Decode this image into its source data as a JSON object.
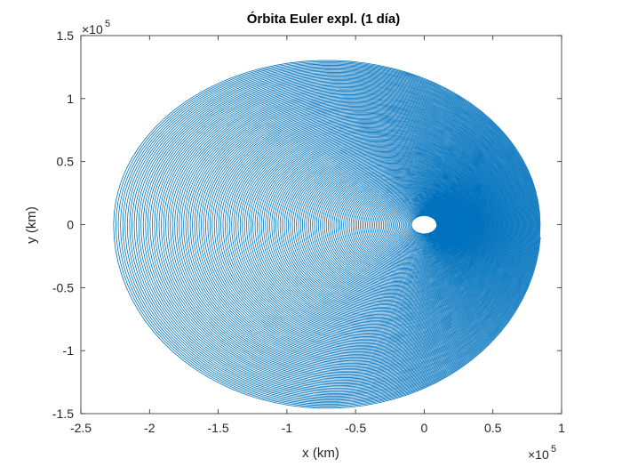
{
  "chart_data": {
    "type": "line",
    "title": "Órbita Euler expl. (1 día)",
    "xlabel": "x (km)",
    "ylabel": "y (km)",
    "xlim": [
      -2.5,
      1
    ],
    "ylim": [
      -1.5,
      1.5
    ],
    "xticks": [
      -2.5,
      -2,
      -1.5,
      -1,
      -0.5,
      0,
      0.5,
      1
    ],
    "yticks": [
      -1.5,
      -1,
      -0.5,
      0,
      0.5,
      1,
      1.5
    ],
    "xtick_labels": [
      "-2.5",
      "-2",
      "-1.5",
      "-1",
      "-0.5",
      "0",
      "0.5",
      "1"
    ],
    "ytick_labels": [
      "-1.5",
      "-1",
      "-0.5",
      "0",
      "0.5",
      "1",
      "1.5"
    ],
    "x_exponent_label": "×10",
    "x_exponent_power": "5",
    "y_exponent_label": "×10",
    "y_exponent_power": "5",
    "grid": false,
    "box": true,
    "series": [
      {
        "color": "#0072bd",
        "description_shape": "outward spiral orbit; start near origin, final loop spans x from about -2.27 to 0.85 and y from about -1.46 to 1.31 (×10^5 km)",
        "start": {
          "x": 0.0,
          "y": 0.0
        },
        "outer_extent": {
          "xmin": -2.27,
          "xmax": 0.85,
          "ymin": -1.46,
          "ymax": 1.31
        },
        "loops": 150
      }
    ]
  }
}
